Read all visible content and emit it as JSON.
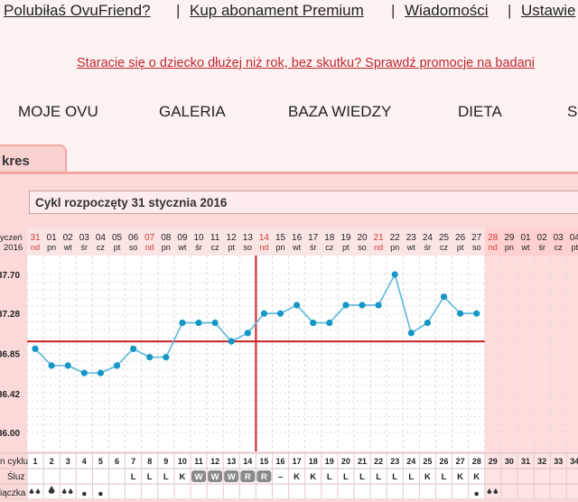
{
  "topnav": {
    "link1": "Polubiłaś OvuFriend?",
    "link2": "Kup abonament Premium ",
    "link3": "Wiadomości",
    "link4": "Ustawie",
    "separator": "|"
  },
  "promo_text": "Staracie się o dziecko dłużej niż rok, bez skutku? Sprawdź promocje na badani",
  "mainnav": [
    "MOJE OVU",
    "GALERIA",
    "BAZA WIEDZY",
    "DIETA",
    "S"
  ],
  "tab_label": "kres",
  "cycle_title": "Cykl rozpoczęty 31 stycznia 2016",
  "row_labels": {
    "date_line1": "yczeń",
    "date_line2": "2016",
    "cycle_day": "n cyklu",
    "mucus": "Śluz",
    "bleeding": "iączka"
  },
  "y_ticks": [
    "37.70",
    "37.28",
    "36.85",
    "36.42",
    "36.00"
  ],
  "coverline_value": 36.98,
  "ovulation_day": 14,
  "colors": {
    "line": "#5bb8dc",
    "dot": "#1596c6",
    "red": "#cc1f26",
    "accent_dates": "#d43a3a"
  },
  "chart_data": {
    "type": "line",
    "title": "Cykl rozpoczęty 31 stycznia 2016",
    "ylim": [
      36.0,
      37.7
    ],
    "grid": true,
    "columns": [
      {
        "date": "31",
        "dow": "nd",
        "cd": "1",
        "mucus": "",
        "red": true
      },
      {
        "date": "01",
        "dow": "pn",
        "cd": "2",
        "mucus": "",
        "red": false
      },
      {
        "date": "02",
        "dow": "wt",
        "cd": "3",
        "mucus": "",
        "red": false
      },
      {
        "date": "03",
        "dow": "śr",
        "cd": "4",
        "mucus": "",
        "red": false
      },
      {
        "date": "04",
        "dow": "cz",
        "cd": "5",
        "mucus": "",
        "red": false
      },
      {
        "date": "05",
        "dow": "pt",
        "cd": "6",
        "mucus": "",
        "red": false
      },
      {
        "date": "06",
        "dow": "so",
        "cd": "7",
        "mucus": "L",
        "red": false
      },
      {
        "date": "07",
        "dow": "nd",
        "cd": "8",
        "mucus": "L",
        "red": true
      },
      {
        "date": "08",
        "dow": "pn",
        "cd": "9",
        "mucus": "L",
        "red": false
      },
      {
        "date": "09",
        "dow": "wt",
        "cd": "10",
        "mucus": "K",
        "red": false
      },
      {
        "date": "10",
        "dow": "śr",
        "cd": "11",
        "mucus": "W",
        "red": false
      },
      {
        "date": "11",
        "dow": "cz",
        "cd": "12",
        "mucus": "W",
        "red": false
      },
      {
        "date": "12",
        "dow": "pt",
        "cd": "13",
        "mucus": "W",
        "red": false
      },
      {
        "date": "13",
        "dow": "so",
        "cd": "14",
        "mucus": "R",
        "red": false
      },
      {
        "date": "14",
        "dow": "nd",
        "cd": "15",
        "mucus": "R",
        "red": true
      },
      {
        "date": "15",
        "dow": "pn",
        "cd": "16",
        "mucus": "–",
        "red": false
      },
      {
        "date": "16",
        "dow": "wt",
        "cd": "17",
        "mucus": "K",
        "red": false
      },
      {
        "date": "17",
        "dow": "śr",
        "cd": "18",
        "mucus": "K",
        "red": false
      },
      {
        "date": "18",
        "dow": "cz",
        "cd": "19",
        "mucus": "L",
        "red": false
      },
      {
        "date": "19",
        "dow": "pt",
        "cd": "20",
        "mucus": "L",
        "red": false
      },
      {
        "date": "20",
        "dow": "so",
        "cd": "21",
        "mucus": "L",
        "red": false
      },
      {
        "date": "21",
        "dow": "nd",
        "cd": "22",
        "mucus": "L",
        "red": true
      },
      {
        "date": "22",
        "dow": "pn",
        "cd": "23",
        "mucus": "L",
        "red": false
      },
      {
        "date": "23",
        "dow": "wt",
        "cd": "24",
        "mucus": "L",
        "red": false
      },
      {
        "date": "24",
        "dow": "śr",
        "cd": "25",
        "mucus": "K",
        "red": false
      },
      {
        "date": "25",
        "dow": "cz",
        "cd": "26",
        "mucus": "L",
        "red": false
      },
      {
        "date": "26",
        "dow": "pt",
        "cd": "27",
        "mucus": "K",
        "red": false
      },
      {
        "date": "27",
        "dow": "so",
        "cd": "28",
        "mucus": "K",
        "red": false
      },
      {
        "date": "28",
        "dow": "nd",
        "cd": "29",
        "mucus": "",
        "red": true
      },
      {
        "date": "29",
        "dow": "pn",
        "cd": "30",
        "mucus": "",
        "red": false
      },
      {
        "date": "01",
        "dow": "wt",
        "cd": "31",
        "mucus": "",
        "red": false
      },
      {
        "date": "02",
        "dow": "śr",
        "cd": "32",
        "mucus": "",
        "red": false
      },
      {
        "date": "03",
        "dow": "cz",
        "cd": "33",
        "mucus": "",
        "red": false
      },
      {
        "date": "04",
        "dow": "pt",
        "cd": "34",
        "mucus": "",
        "red": false
      }
    ],
    "series": [
      {
        "values": [
          36.9,
          36.72,
          36.72,
          36.64,
          36.64,
          36.72,
          36.9,
          36.81,
          36.81,
          37.18,
          37.18,
          37.18,
          36.98,
          37.07,
          37.28,
          37.28,
          37.37,
          37.18,
          37.18,
          37.37,
          37.37,
          37.37,
          37.7,
          37.07,
          37.18,
          37.46,
          37.28,
          37.28
        ]
      }
    ],
    "bleeding": [
      "heavy",
      "light",
      "heavy",
      "spotting",
      "spotting",
      "",
      "",
      "",
      "",
      "",
      "",
      "",
      "",
      "",
      "",
      "",
      "",
      "",
      "",
      "",
      "",
      "",
      "",
      "",
      "",
      "",
      "",
      "spotting",
      "heavy"
    ]
  }
}
